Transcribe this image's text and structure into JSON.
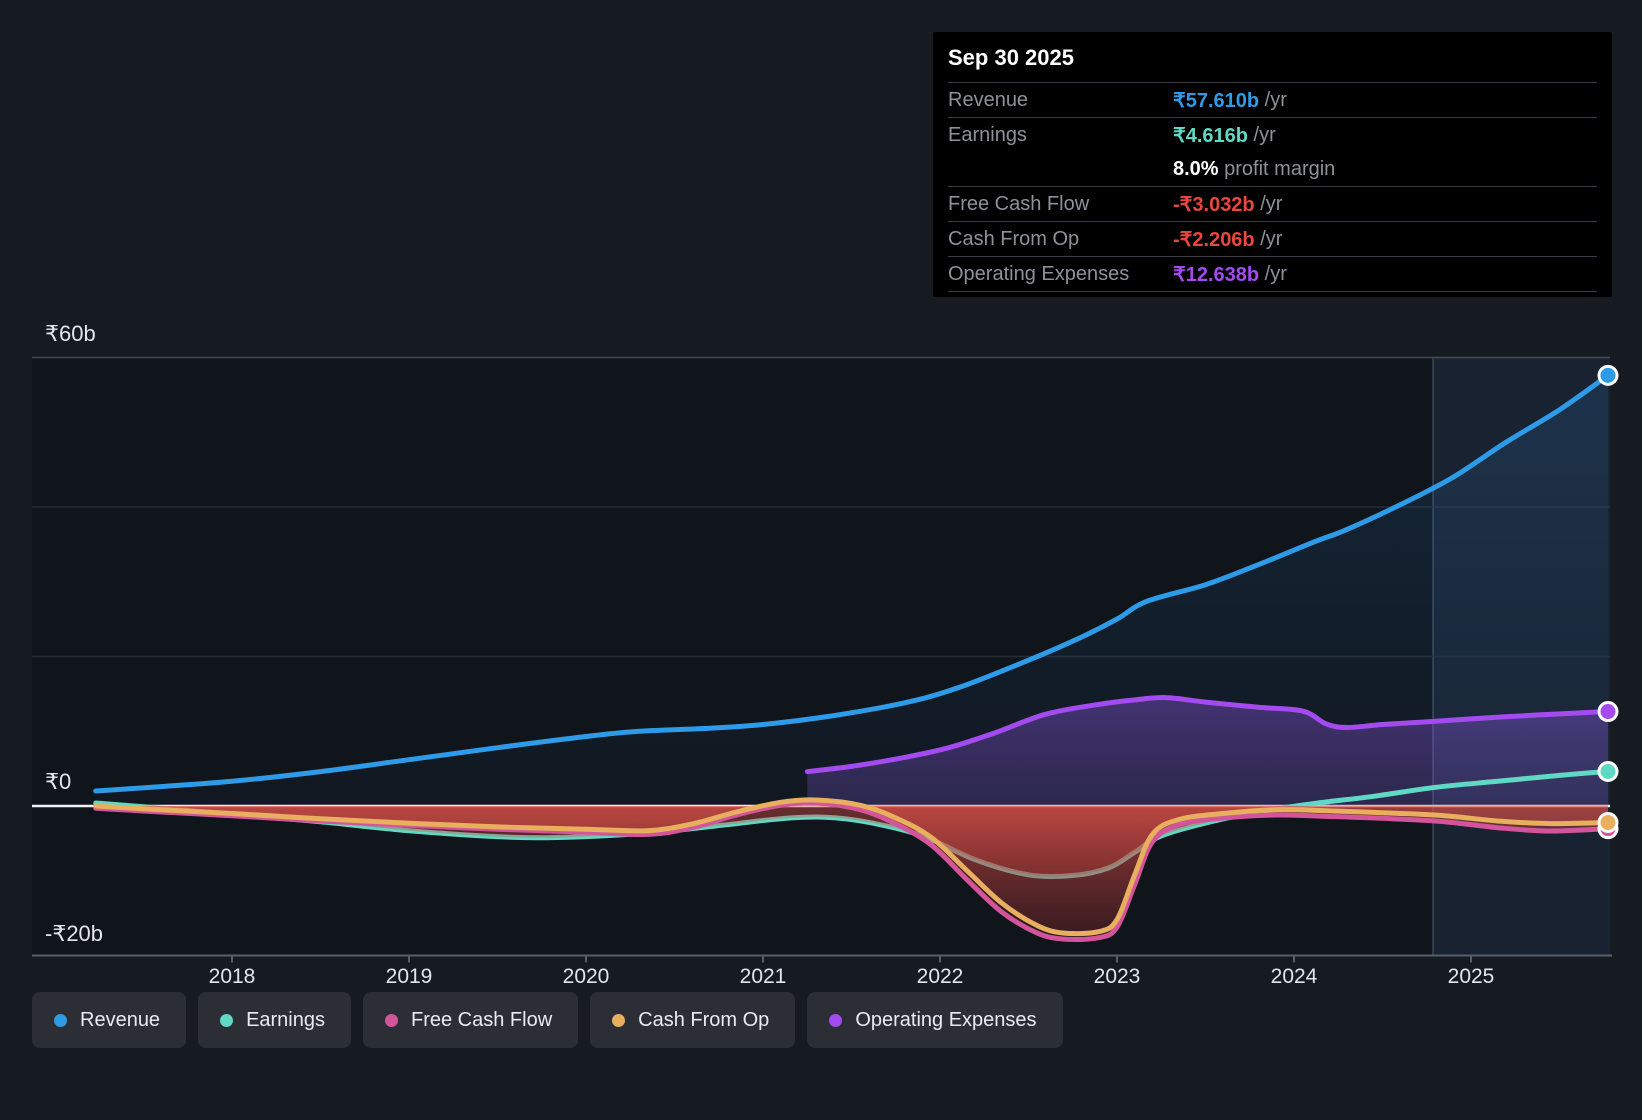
{
  "page": {
    "background": "#161b22"
  },
  "colors": {
    "revenue": "#2E9BE8",
    "earnings": "#5FD9C4",
    "fcf": "#D4549B",
    "cashop": "#E8AF5E",
    "opex": "#A44BF0",
    "negative": "#E8473F",
    "label_gray": "#8D9298",
    "axis_text": "#E3E6E9",
    "zero_line": "#EFF2F4",
    "grid_major": "#454B54",
    "grid_minor": "#262D36",
    "axis_line": "#596069",
    "band_fill": "rgba(96,158,220,0.11)",
    "band_edge": "rgba(150,185,215,0.28)"
  },
  "tooltip": {
    "date": "Sep 30 2025",
    "rows": [
      {
        "label": "Revenue",
        "value": "₹57.610b",
        "suffix": " /yr",
        "color_key": "revenue"
      },
      {
        "label": "Earnings",
        "value": "₹4.616b",
        "suffix": " /yr",
        "color_key": "earnings",
        "note_value": "8.0%",
        "note_text": " profit margin"
      },
      {
        "label": "Free Cash Flow",
        "value": "-₹3.032b",
        "suffix": " /yr",
        "color_key": "negative"
      },
      {
        "label": "Cash From Op",
        "value": "-₹2.206b",
        "suffix": " /yr",
        "color_key": "negative"
      },
      {
        "label": "Operating Expenses",
        "value": "₹12.638b",
        "suffix": " /yr",
        "color_key": "opex"
      }
    ]
  },
  "legend": [
    {
      "label": "Revenue",
      "color_key": "revenue"
    },
    {
      "label": "Earnings",
      "color_key": "earnings"
    },
    {
      "label": "Free Cash Flow",
      "color_key": "fcf"
    },
    {
      "label": "Cash From Op",
      "color_key": "cashop"
    },
    {
      "label": "Operating Expenses",
      "color_key": "opex"
    }
  ],
  "axes": {
    "y_ticks": [
      {
        "label": "₹60b",
        "value": 60
      },
      {
        "label": "₹0",
        "value": 0
      },
      {
        "label": "-₹20b",
        "value": -20
      }
    ],
    "x_ticks": [
      {
        "label": "2018",
        "year": 2018
      },
      {
        "label": "2019",
        "year": 2019
      },
      {
        "label": "2020",
        "year": 2020
      },
      {
        "label": "2021",
        "year": 2021
      },
      {
        "label": "2022",
        "year": 2022
      },
      {
        "label": "2023",
        "year": 2023
      },
      {
        "label": "2024",
        "year": 2024
      },
      {
        "label": "2025",
        "year": 2025
      }
    ]
  },
  "chart_data": {
    "type": "line",
    "x_unit": "year (fiscal time axis)",
    "xlim": [
      2017.23,
      2025.95
    ],
    "ylim": [
      -20,
      60
    ],
    "grid_values": [
      60,
      40,
      20
    ],
    "zero_value": 0,
    "bottom_value": -20,
    "highlight_band": {
      "from_year": 2024.785,
      "to_year": 2025.79
    },
    "last_point_year": 2025.774,
    "series": [
      {
        "name": "Revenue",
        "color_key": "revenue",
        "unit": "₹b",
        "points": [
          [
            2017.23,
            2.0
          ],
          [
            2017.6,
            2.6
          ],
          [
            2018,
            3.3
          ],
          [
            2018.5,
            4.6
          ],
          [
            2019,
            6.2
          ],
          [
            2019.5,
            7.8
          ],
          [
            2020,
            9.3
          ],
          [
            2020.3,
            10.0
          ],
          [
            2020.7,
            10.4
          ],
          [
            2021,
            10.9
          ],
          [
            2021.4,
            12.1
          ],
          [
            2021.8,
            13.8
          ],
          [
            2022.1,
            15.8
          ],
          [
            2022.5,
            19.5
          ],
          [
            2022.8,
            22.6
          ],
          [
            2023,
            25.0
          ],
          [
            2023.17,
            27.4
          ],
          [
            2023.5,
            29.6
          ],
          [
            2023.8,
            32.3
          ],
          [
            2024.1,
            35.2
          ],
          [
            2024.3,
            37.0
          ],
          [
            2024.6,
            40.3
          ],
          [
            2024.9,
            44.0
          ],
          [
            2025.2,
            48.7
          ],
          [
            2025.5,
            53.0
          ],
          [
            2025.774,
            57.61
          ]
        ]
      },
      {
        "name": "Earnings",
        "color_key": "earnings",
        "unit": "₹b",
        "points": [
          [
            2017.23,
            0.4
          ],
          [
            2017.6,
            -0.3
          ],
          [
            2018,
            -1.1
          ],
          [
            2018.5,
            -2.1
          ],
          [
            2019,
            -3.3
          ],
          [
            2019.6,
            -4.2
          ],
          [
            2020,
            -4.1
          ],
          [
            2020.4,
            -3.5
          ],
          [
            2020.8,
            -2.5
          ],
          [
            2021.1,
            -1.7
          ],
          [
            2021.35,
            -1.5
          ],
          [
            2021.6,
            -2.2
          ],
          [
            2021.9,
            -4.0
          ],
          [
            2022.2,
            -7.2
          ],
          [
            2022.5,
            -9.2
          ],
          [
            2022.75,
            -9.3
          ],
          [
            2022.95,
            -8.3
          ],
          [
            2023.1,
            -6.2
          ],
          [
            2023.25,
            -4.0
          ],
          [
            2023.55,
            -2.0
          ],
          [
            2023.85,
            -0.6
          ],
          [
            2024.1,
            0.3
          ],
          [
            2024.45,
            1.3
          ],
          [
            2024.8,
            2.5
          ],
          [
            2025.15,
            3.3
          ],
          [
            2025.5,
            4.1
          ],
          [
            2025.774,
            4.616
          ]
        ]
      },
      {
        "name": "Free Cash Flow",
        "color_key": "fcf",
        "unit": "₹b",
        "points": [
          [
            2017.23,
            -0.3
          ],
          [
            2017.6,
            -0.8
          ],
          [
            2018,
            -1.3
          ],
          [
            2018.5,
            -2.0
          ],
          [
            2019,
            -2.6
          ],
          [
            2019.5,
            -3.1
          ],
          [
            2020,
            -3.5
          ],
          [
            2020.35,
            -3.8
          ],
          [
            2020.6,
            -2.9
          ],
          [
            2020.85,
            -1.2
          ],
          [
            2021.1,
            0.1
          ],
          [
            2021.3,
            0.4
          ],
          [
            2021.55,
            -0.5
          ],
          [
            2021.75,
            -2.4
          ],
          [
            2021.95,
            -5.2
          ],
          [
            2022.15,
            -9.8
          ],
          [
            2022.35,
            -14.2
          ],
          [
            2022.55,
            -17.0
          ],
          [
            2022.7,
            -17.8
          ],
          [
            2022.9,
            -17.6
          ],
          [
            2023.0,
            -16.2
          ],
          [
            2023.1,
            -10.5
          ],
          [
            2023.2,
            -4.8
          ],
          [
            2023.35,
            -2.5
          ],
          [
            2023.6,
            -1.6
          ],
          [
            2023.9,
            -1.2
          ],
          [
            2024.2,
            -1.4
          ],
          [
            2024.55,
            -1.7
          ],
          [
            2024.85,
            -2.1
          ],
          [
            2025.15,
            -2.9
          ],
          [
            2025.45,
            -3.35
          ],
          [
            2025.774,
            -3.032
          ]
        ]
      },
      {
        "name": "Cash From Op",
        "color_key": "cashop",
        "unit": "₹b",
        "points": [
          [
            2017.23,
            0.0
          ],
          [
            2017.6,
            -0.5
          ],
          [
            2018,
            -1.0
          ],
          [
            2018.5,
            -1.7
          ],
          [
            2019,
            -2.3
          ],
          [
            2019.5,
            -2.8
          ],
          [
            2020,
            -3.1
          ],
          [
            2020.35,
            -3.3
          ],
          [
            2020.6,
            -2.4
          ],
          [
            2020.85,
            -0.8
          ],
          [
            2021.1,
            0.5
          ],
          [
            2021.3,
            0.8
          ],
          [
            2021.55,
            0.1
          ],
          [
            2021.75,
            -1.6
          ],
          [
            2021.95,
            -4.2
          ],
          [
            2022.15,
            -8.6
          ],
          [
            2022.35,
            -13.0
          ],
          [
            2022.55,
            -16.0
          ],
          [
            2022.7,
            -17.0
          ],
          [
            2022.9,
            -16.8
          ],
          [
            2023.0,
            -15.2
          ],
          [
            2023.1,
            -9.2
          ],
          [
            2023.2,
            -3.8
          ],
          [
            2023.35,
            -1.8
          ],
          [
            2023.6,
            -1.0
          ],
          [
            2023.9,
            -0.5
          ],
          [
            2024.2,
            -0.65
          ],
          [
            2024.55,
            -0.95
          ],
          [
            2024.85,
            -1.3
          ],
          [
            2025.15,
            -2.0
          ],
          [
            2025.45,
            -2.35
          ],
          [
            2025.774,
            -2.206
          ]
        ]
      },
      {
        "name": "Operating Expenses",
        "color_key": "opex",
        "unit": "₹b",
        "points": [
          [
            2021.25,
            4.6
          ],
          [
            2021.5,
            5.3
          ],
          [
            2021.8,
            6.5
          ],
          [
            2022.05,
            7.8
          ],
          [
            2022.3,
            9.7
          ],
          [
            2022.6,
            12.3
          ],
          [
            2022.9,
            13.6
          ],
          [
            2023.1,
            14.2
          ],
          [
            2023.28,
            14.5
          ],
          [
            2023.5,
            13.9
          ],
          [
            2023.8,
            13.2
          ],
          [
            2024.05,
            12.7
          ],
          [
            2024.18,
            11.0
          ],
          [
            2024.3,
            10.5
          ],
          [
            2024.5,
            10.9
          ],
          [
            2024.78,
            11.3
          ],
          [
            2025.1,
            11.8
          ],
          [
            2025.4,
            12.2
          ],
          [
            2025.774,
            12.638
          ]
        ]
      }
    ],
    "end_values": {
      "revenue": 57.61,
      "earnings": 4.616,
      "fcf": -3.032,
      "cashop": -2.206,
      "opex": 12.638
    }
  }
}
